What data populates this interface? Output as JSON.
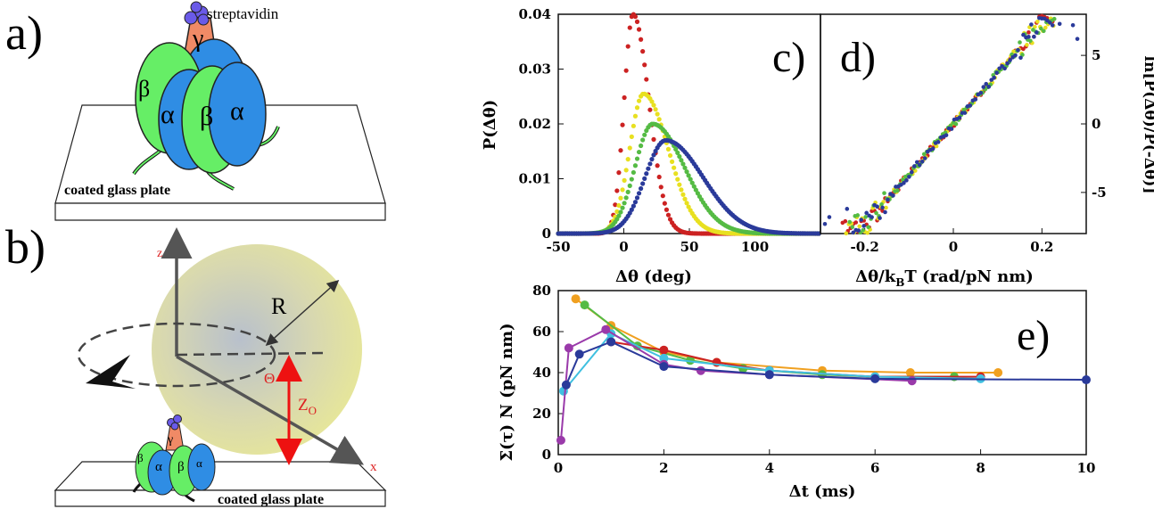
{
  "panels": {
    "a": {
      "letter": "a)",
      "streptavidin": "streptavidin",
      "gamma": "γ",
      "alpha": "α",
      "beta": "β",
      "plate": "coated glass plate"
    },
    "b": {
      "letter": "b)",
      "axis_z": "z",
      "axis_x": "x",
      "radius": "R",
      "theta": "Θ",
      "z0": "Z",
      "z0_sub": "O",
      "gamma": "γ",
      "alpha": "α",
      "beta": "β",
      "plate": "coated glass plate"
    },
    "c": {
      "letter": "c)"
    },
    "d": {
      "letter": "d)"
    },
    "e": {
      "letter": "e)"
    }
  },
  "colors": {
    "red": "#cc2222",
    "yellow": "#e8e020",
    "green": "#55bb44",
    "blue": "#2a3a9a",
    "orange": "#f0a020",
    "cyan": "#40c0e0",
    "purple": "#9a3aaa",
    "alpha_blue": "#2f8de4",
    "beta_green": "#66ee66",
    "gamma_salmon": "#f08a66",
    "strep_purple": "#6a5ae8",
    "bead": "#e4e4a4"
  },
  "chart_data": [
    {
      "panel": "c",
      "type": "scatter",
      "xlabel": "Δθ (deg)",
      "ylabel": "P(Δθ)",
      "xlim": [
        -50,
        150
      ],
      "ylim": [
        0,
        0.04
      ],
      "xticks": [
        "-50",
        "0",
        "50",
        "100"
      ],
      "xtick_values": [
        -50,
        0,
        50,
        100
      ],
      "yticks": [
        "0",
        "0.01",
        "0.02",
        "0.03",
        "0.04"
      ],
      "ytick_values": [
        0,
        0.01,
        0.02,
        0.03,
        0.04
      ],
      "series": [
        {
          "color": "red",
          "peak_x": 7,
          "peak_y": 0.04,
          "width": 9
        },
        {
          "color": "yellow",
          "peak_x": 15,
          "peak_y": 0.0255,
          "width": 14
        },
        {
          "color": "green",
          "peak_x": 22,
          "peak_y": 0.02,
          "width": 18
        },
        {
          "color": "blue",
          "peak_x": 32,
          "peak_y": 0.017,
          "width": 21
        }
      ]
    },
    {
      "panel": "d",
      "type": "scatter",
      "xlabel": "Δθ/k",
      "xlabel_sub": "B",
      "xlabel_tail": "T (rad/pN nm)",
      "ylabel": "ln[P(Δθ)/P(-Δθ)]",
      "xlim": [
        -0.3,
        0.3
      ],
      "ylim": [
        -8,
        8
      ],
      "xticks": [
        "-0.2",
        "0",
        "0.2"
      ],
      "xtick_values": [
        -0.2,
        0,
        0.2
      ],
      "yticks": [
        "-5",
        "0",
        "5"
      ],
      "ytick_values": [
        -5,
        0,
        5
      ],
      "slope": 37,
      "x_range": [
        -0.25,
        0.2
      ]
    },
    {
      "panel": "e",
      "type": "line",
      "xlabel": "Δt (ms)",
      "ylabel": "Σ(τ)  N (pN nm)",
      "xlim": [
        0,
        10
      ],
      "ylim": [
        0,
        80
      ],
      "xticks": [
        "0",
        "2",
        "4",
        "6",
        "8",
        "10"
      ],
      "xtick_values": [
        0,
        2,
        4,
        6,
        8,
        10
      ],
      "yticks": [
        "0",
        "20",
        "40",
        "60",
        "80"
      ],
      "ytick_values": [
        0,
        20,
        40,
        60,
        80
      ],
      "series": [
        {
          "color": "orange",
          "x": [
            0.33,
            1.0,
            2.0,
            3.0,
            5.0,
            6.67,
            8.33
          ],
          "y": [
            76,
            63,
            50,
            45,
            41,
            40,
            40
          ]
        },
        {
          "color": "green",
          "x": [
            0.5,
            1.5,
            2.5,
            3.5,
            5.0,
            6.0,
            7.5
          ],
          "y": [
            73,
            53,
            46,
            42,
            39,
            38,
            38
          ]
        },
        {
          "color": "red",
          "x": [
            1.0,
            2.0,
            3.0,
            4.0,
            6.0,
            8.0
          ],
          "y": [
            55,
            51,
            45,
            41,
            38,
            38
          ]
        },
        {
          "color": "cyan",
          "x": [
            0.1,
            1.0,
            2.0,
            4.0,
            6.0,
            8.0
          ],
          "y": [
            31,
            59,
            47,
            41,
            38,
            37
          ]
        },
        {
          "color": "purple",
          "x": [
            0.05,
            0.2,
            0.9,
            2.0,
            2.7,
            4.0,
            6.7
          ],
          "y": [
            7,
            52,
            61,
            44,
            41,
            39,
            36
          ]
        },
        {
          "color": "blue",
          "x": [
            0.15,
            0.4,
            1.0,
            2.0,
            4.0,
            6.0,
            10.0
          ],
          "y": [
            34,
            49,
            55,
            43,
            39,
            37,
            36.5
          ]
        }
      ]
    }
  ]
}
